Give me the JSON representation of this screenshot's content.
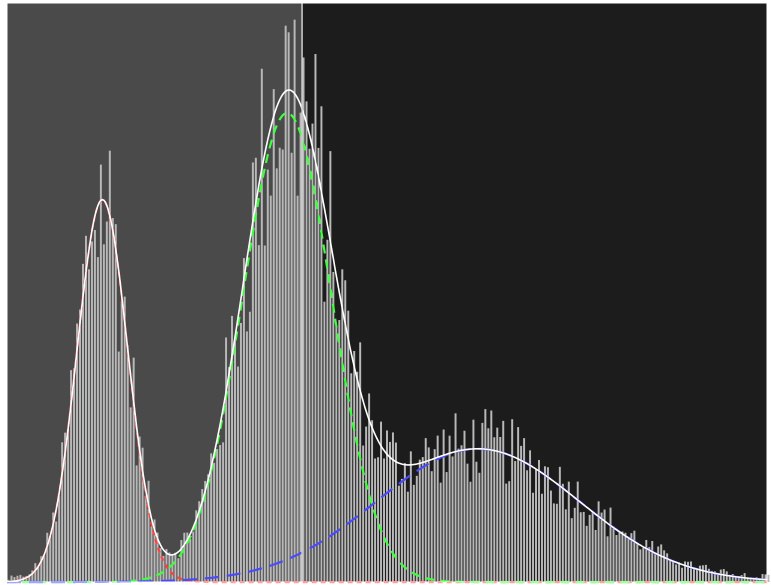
{
  "chart_data": {
    "type": "bar",
    "title": "",
    "xlabel": "",
    "ylabel": "",
    "xlim": [
      0,
      255
    ],
    "ylim": [
      0,
      1.0
    ],
    "grid": false,
    "legend": "none",
    "background_regions": [
      {
        "from": 0,
        "to": 99,
        "color": "#4a4a4a"
      },
      {
        "from": 99,
        "to": 255,
        "color": "#1c1c1c"
      }
    ],
    "threshold": 99,
    "components": [
      {
        "mean": 32,
        "sd": 8.5,
        "amp": 0.66,
        "color": "#ff4040",
        "dash": "5 4"
      },
      {
        "mean": 94,
        "sd": 15,
        "amp": 0.81,
        "color": "#40ff40",
        "dash": "9 6"
      },
      {
        "mean": 158,
        "sd": 34,
        "amp": 0.23,
        "color": "#4a4aff",
        "dash": "14 8"
      }
    ],
    "histogram_color": "#b8b8b8",
    "mixture_color": "#ffffff"
  }
}
